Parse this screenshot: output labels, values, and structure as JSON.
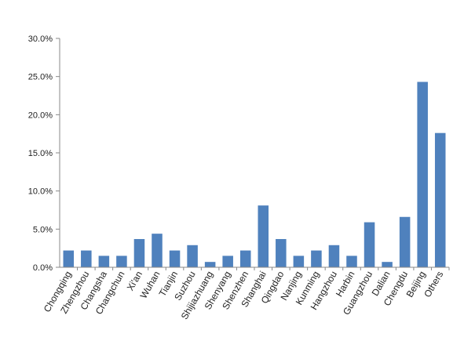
{
  "chart_data": {
    "type": "bar",
    "title": "",
    "xlabel": "",
    "ylabel": "",
    "ylim": [
      0,
      30
    ],
    "yticks": [
      "0.0%",
      "5.0%",
      "10.0%",
      "15.0%",
      "20.0%",
      "25.0%",
      "30.0%"
    ],
    "grid": false,
    "legend": "none",
    "bar_color": "#4f81bd",
    "categories": [
      "Chongqing",
      "Zhengzhou",
      "Changsha",
      "Changchun",
      "Xi'an",
      "Wuhan",
      "Tianjin",
      "Suzhou",
      "Shijiazhuang",
      "Shenyang",
      "Shenzhen",
      "Shanghai",
      "Qingdao",
      "Nanjing",
      "Kunming",
      "Hangzhou",
      "Harbin",
      "Guangzhou",
      "Dalian",
      "Chengdu",
      "Beijing",
      "Others"
    ],
    "values": [
      2.2,
      2.2,
      1.5,
      1.5,
      3.7,
      4.4,
      2.2,
      2.9,
      0.7,
      1.5,
      2.2,
      8.1,
      3.7,
      1.5,
      2.2,
      2.9,
      1.5,
      5.9,
      0.7,
      6.6,
      24.3,
      17.6
    ]
  }
}
